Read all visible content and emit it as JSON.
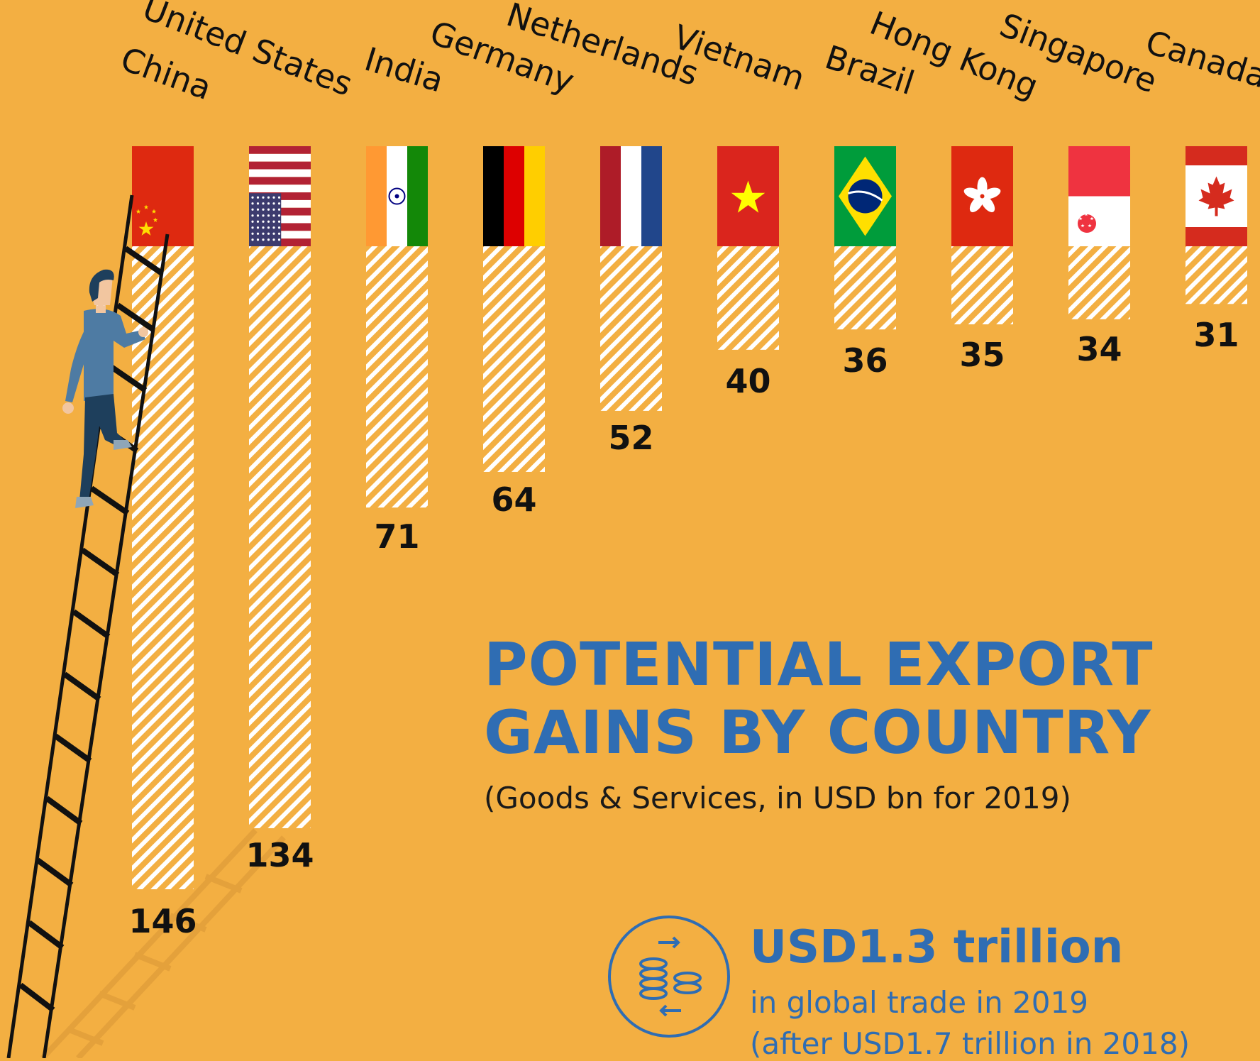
{
  "chart_data": {
    "type": "bar",
    "title": "POTENTIAL EXPORT GAINS BY COUNTRY",
    "subtitle": "(Goods & Services, in USD bn for 2019)",
    "categories": [
      "China",
      "United States",
      "India",
      "Germany",
      "Netherlands",
      "Vietnam",
      "Brazil",
      "Hong Kong",
      "Singapore",
      "Canada"
    ],
    "values": [
      146,
      134,
      71,
      64,
      52,
      40,
      36,
      35,
      34,
      31
    ],
    "unit": "USD bn",
    "ylim": [
      0,
      146
    ],
    "grid": false,
    "legend": "none",
    "bar_fill": "hatched"
  },
  "callout": {
    "amount": "USD1.3 trillion",
    "line1": "in global trade in 2019",
    "line2": "(after USD1.7 trillion in 2018)",
    "icon": "coins-exchange-icon"
  },
  "colors": {
    "background": "#F3AF42",
    "accent": "#2F6DB3",
    "hatch_stripe": "#FFFFFF",
    "text": "#111111"
  },
  "illustration": {
    "figure": "person-climbing-ladder",
    "icons": [
      "flag-china-icon",
      "flag-united-states-icon",
      "flag-india-icon",
      "flag-germany-icon",
      "flag-netherlands-icon",
      "flag-vietnam-icon",
      "flag-brazil-icon",
      "flag-hong-kong-icon",
      "flag-singapore-icon",
      "flag-canada-icon"
    ]
  }
}
